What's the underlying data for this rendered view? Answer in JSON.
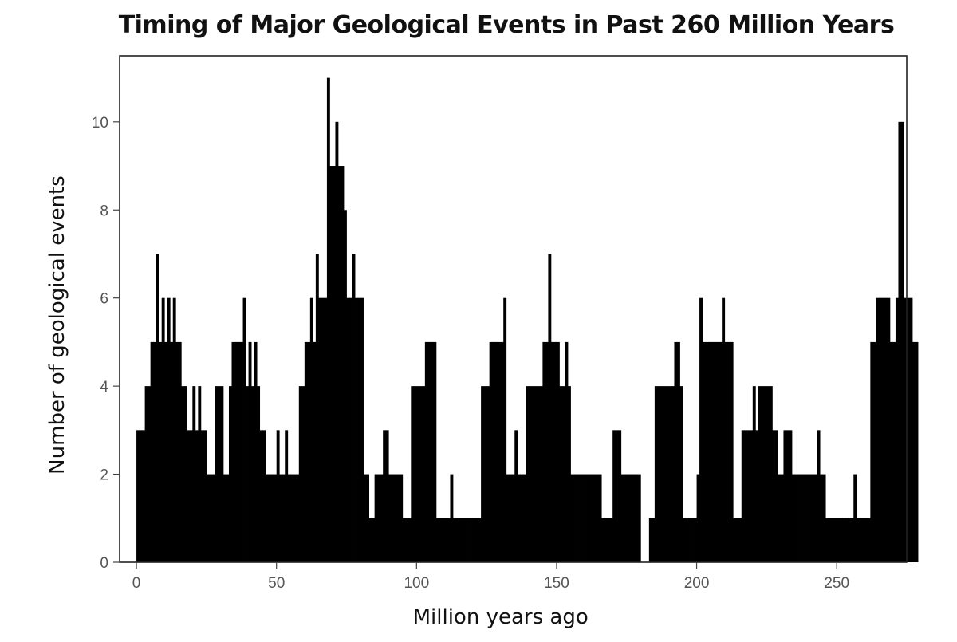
{
  "chart_data": {
    "type": "bar",
    "title": "Timing of Major Geological Events in Past 260 Million Years",
    "xlabel": "Million years ago",
    "ylabel": "Number of geological events",
    "xlim": [
      -6,
      275
    ],
    "ylim": [
      0,
      11.5
    ],
    "xticks": [
      0,
      50,
      100,
      150,
      200,
      250
    ],
    "yticks": [
      0,
      2,
      4,
      6,
      8,
      10
    ],
    "bin_width_myr": 1,
    "bar_color": "#000000",
    "x_start": 0,
    "values": [
      3,
      3,
      3,
      4,
      4,
      5,
      5,
      7,
      5,
      6,
      5,
      6,
      5,
      6,
      5,
      5,
      4,
      4,
      3,
      3,
      4,
      3,
      4,
      3,
      3,
      2,
      2,
      2,
      4,
      4,
      4,
      2,
      2,
      4,
      5,
      5,
      5,
      5,
      6,
      4,
      5,
      4,
      5,
      4,
      3,
      3,
      2,
      2,
      2,
      2,
      3,
      2,
      2,
      3,
      2,
      2,
      2,
      2,
      4,
      4,
      5,
      5,
      6,
      5,
      7,
      6,
      6,
      6,
      11,
      9,
      9,
      10,
      9,
      9,
      8,
      6,
      6,
      7,
      6,
      6,
      6,
      2,
      2,
      1,
      1,
      2,
      2,
      2,
      3,
      3,
      2,
      2,
      2,
      2,
      2,
      1,
      1,
      1,
      4,
      4,
      4,
      4,
      4,
      5,
      5,
      5,
      5,
      1,
      1,
      1,
      1,
      1,
      2,
      1,
      1,
      1,
      1,
      1,
      1,
      1,
      1,
      1,
      1,
      4,
      4,
      4,
      5,
      5,
      5,
      5,
      5,
      6,
      2,
      2,
      2,
      3,
      2,
      2,
      2,
      4,
      4,
      4,
      4,
      4,
      4,
      5,
      5,
      7,
      5,
      5,
      5,
      4,
      4,
      5,
      4,
      2,
      2,
      2,
      2,
      2,
      2,
      2,
      2,
      2,
      2,
      2,
      1,
      1,
      1,
      1,
      3,
      3,
      3,
      2,
      2,
      2,
      2,
      2,
      2,
      2,
      0,
      0,
      0,
      1,
      1,
      4,
      4,
      4,
      4,
      4,
      4,
      4,
      5,
      5,
      4,
      1,
      1,
      1,
      1,
      1,
      2,
      6,
      5,
      5,
      5,
      5,
      5,
      5,
      5,
      6,
      5,
      5,
      5,
      1,
      1,
      1,
      3,
      3,
      3,
      3,
      4,
      3,
      4,
      4,
      4,
      4,
      4,
      3,
      3,
      2,
      2,
      3,
      3,
      3,
      2,
      2,
      2,
      2,
      2,
      2,
      2,
      2,
      2,
      3,
      2,
      2,
      1,
      1,
      1,
      1,
      1,
      1,
      1,
      1,
      1,
      1,
      2,
      1,
      1,
      1,
      1,
      1,
      5,
      5,
      6,
      6,
      6,
      6,
      6,
      5,
      5,
      6,
      10,
      10,
      6,
      6,
      6,
      5,
      5
    ]
  }
}
